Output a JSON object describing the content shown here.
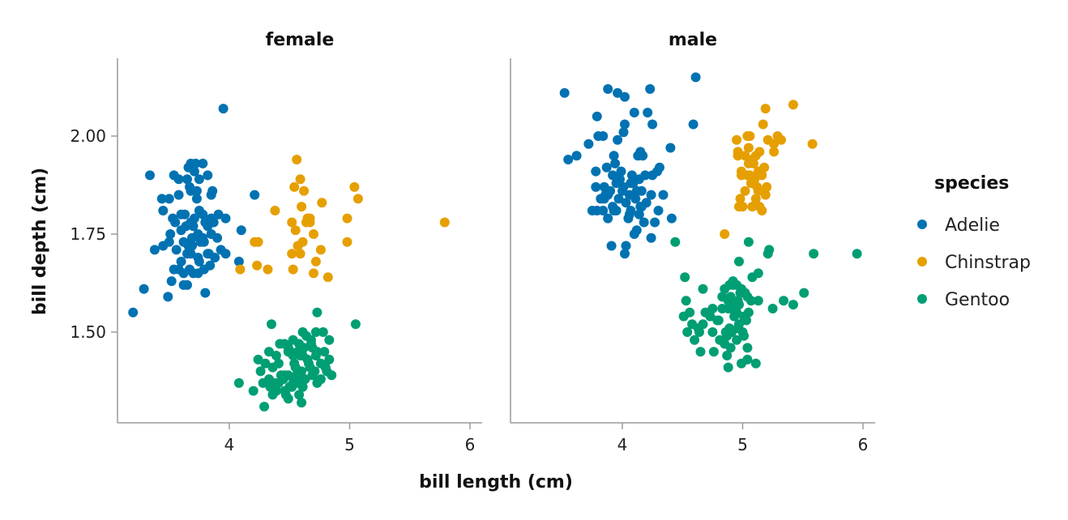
{
  "chart_data": {
    "type": "scatter",
    "xlabel": "bill length (cm)",
    "ylabel": "bill depth (cm)",
    "xlim": [
      3.1,
      6.1
    ],
    "ylim": [
      1.28,
      2.2
    ],
    "x_ticks": [
      4,
      5,
      6
    ],
    "y_ticks": [
      1.5,
      1.75,
      2.0
    ],
    "x_tick_labels": [
      "4",
      "5",
      "6"
    ],
    "y_tick_labels": [
      "1.50",
      "1.75",
      "2.00"
    ],
    "grid": false,
    "legend": {
      "title": "species",
      "placement": "right",
      "entries": [
        "Adelie",
        "Chinstrap",
        "Gentoo"
      ]
    },
    "colors": {
      "Adelie": "#0072b2",
      "Chinstrap": "#e69f00",
      "Gentoo": "#009e73"
    },
    "facets": [
      {
        "title": "female",
        "series": [
          {
            "name": "Adelie",
            "x": [
              3.95,
              3.72,
              3.78,
              3.68,
              3.66,
              3.71,
              3.58,
              3.65,
              3.75,
              3.54,
              3.82,
              3.67,
              3.68,
              3.73,
              3.58,
              3.5,
              3.73,
              3.86,
              3.85,
              3.45,
              3.75,
              3.6,
              3.63,
              3.78,
              3.85,
              3.71,
              3.53,
              3.55,
              3.68,
              3.8,
              3.64,
              3.7,
              3.82,
              3.87,
              3.6,
              3.74,
              3.85,
              3.91,
              3.51,
              3.69,
              3.62,
              3.78,
              3.79,
              3.5,
              3.69,
              3.97,
              3.66,
              3.76,
              3.9,
              3.45,
              3.56,
              3.65,
              3.93,
              3.83,
              3.38,
              3.68,
              3.82,
              3.74,
              3.88,
              3.97,
              3.6,
              3.75,
              3.54,
              3.67,
              3.84,
              3.58,
              3.74,
              4.08,
              3.79,
              3.7,
              3.62,
              3.52,
              3.65,
              3.8,
              3.29,
              3.49,
              3.62,
              3.2,
              4.21,
              4.1,
              3.34,
              3.44
            ],
            "y": [
              2.07,
              1.93,
              1.93,
              1.93,
              1.92,
              1.91,
              1.89,
              1.89,
              1.89,
              1.9,
              1.9,
              1.87,
              1.86,
              1.86,
              1.85,
              1.84,
              1.84,
              1.86,
              1.85,
              1.81,
              1.81,
              1.8,
              1.8,
              1.8,
              1.79,
              1.79,
              1.79,
              1.78,
              1.78,
              1.78,
              1.77,
              1.77,
              1.77,
              1.78,
              1.76,
              1.75,
              1.75,
              1.8,
              1.75,
              1.74,
              1.73,
              1.74,
              1.73,
              1.73,
              1.72,
              1.79,
              1.72,
              1.73,
              1.74,
              1.72,
              1.71,
              1.7,
              1.71,
              1.7,
              1.71,
              1.7,
              1.7,
              1.69,
              1.69,
              1.7,
              1.68,
              1.68,
              1.66,
              1.66,
              1.67,
              1.66,
              1.65,
              1.68,
              1.66,
              1.65,
              1.65,
              1.63,
              1.62,
              1.6,
              1.61,
              1.59,
              1.62,
              1.55,
              1.85,
              1.76,
              1.9,
              1.84
            ]
          },
          {
            "name": "Chinstrap",
            "x": [
              4.56,
              4.59,
              5.04,
              4.54,
              4.62,
              5.07,
              4.77,
              4.38,
              4.6,
              4.67,
              4.67,
              4.52,
              4.64,
              4.65,
              4.55,
              5.79,
              4.7,
              4.98,
              4.61,
              4.57,
              4.24,
              4.98,
              4.59,
              4.21,
              4.57,
              4.52,
              4.76,
              4.72,
              4.09,
              4.23,
              4.32,
              4.53,
              4.7,
              4.82
            ],
            "y": [
              1.94,
              1.89,
              1.87,
              1.87,
              1.86,
              1.84,
              1.83,
              1.81,
              1.82,
              1.79,
              1.78,
              1.78,
              1.78,
              1.79,
              1.76,
              1.78,
              1.75,
              1.79,
              1.73,
              1.72,
              1.73,
              1.73,
              1.7,
              1.73,
              1.72,
              1.7,
              1.71,
              1.68,
              1.66,
              1.67,
              1.66,
              1.66,
              1.65,
              1.64
            ]
          },
          {
            "name": "Gentoo",
            "x": [
              4.73,
              4.35,
              4.61,
              5.05,
              4.64,
              4.72,
              4.78,
              4.53,
              4.68,
              4.58,
              4.46,
              4.83,
              4.69,
              4.49,
              4.62,
              4.68,
              4.51,
              4.57,
              4.49,
              4.53,
              4.59,
              4.61,
              4.65,
              4.72,
              4.73,
              4.33,
              4.39,
              4.24,
              4.3,
              4.41,
              4.76,
              4.8,
              4.66,
              4.36,
              4.55,
              4.71,
              4.6,
              4.26,
              4.49,
              4.56,
              4.43,
              4.33,
              4.45,
              4.63,
              4.28,
              4.38,
              4.85,
              4.81,
              4.57,
              4.34,
              4.5,
              4.61,
              4.73,
              4.39,
              4.46,
              4.47,
              4.58,
              4.76,
              4.69,
              4.52,
              4.83,
              4.79,
              4.54,
              4.67,
              4.41,
              4.55,
              4.08,
              4.2,
              4.36,
              4.49,
              4.29,
              4.6,
              4.53,
              4.46,
              4.42
            ],
            "y": [
              1.55,
              1.52,
              1.5,
              1.52,
              1.49,
              1.5,
              1.5,
              1.48,
              1.48,
              1.47,
              1.47,
              1.48,
              1.46,
              1.46,
              1.46,
              1.47,
              1.45,
              1.45,
              1.45,
              1.44,
              1.44,
              1.44,
              1.43,
              1.44,
              1.45,
              1.45,
              1.44,
              1.43,
              1.42,
              1.42,
              1.42,
              1.41,
              1.42,
              1.41,
              1.41,
              1.4,
              1.4,
              1.4,
              1.39,
              1.39,
              1.39,
              1.38,
              1.38,
              1.38,
              1.37,
              1.37,
              1.39,
              1.4,
              1.37,
              1.36,
              1.36,
              1.36,
              1.37,
              1.35,
              1.35,
              1.34,
              1.34,
              1.38,
              1.39,
              1.36,
              1.43,
              1.45,
              1.42,
              1.41,
              1.37,
              1.38,
              1.37,
              1.35,
              1.34,
              1.33,
              1.31,
              1.32,
              1.37,
              1.39,
              1.47
            ]
          }
        ]
      },
      {
        "title": "male",
        "series": [
          {
            "name": "Adelie",
            "x": [
              4.61,
              3.88,
              3.96,
              4.23,
              3.52,
              4.59,
              4.02,
              4.21,
              4.1,
              3.79,
              4.02,
              4.01,
              4.25,
              3.8,
              3.84,
              3.96,
              4.4,
              3.72,
              3.93,
              4.13,
              4.15,
              4.17,
              3.62,
              3.55,
              3.94,
              3.87,
              3.78,
              4.19,
              4.25,
              3.92,
              3.99,
              4.31,
              4.08,
              4.14,
              3.98,
              4.07,
              3.85,
              4.01,
              4.09,
              4.29,
              3.9,
              3.78,
              3.95,
              4.16,
              4.12,
              4.24,
              4.06,
              3.88,
              4.11,
              3.82,
              3.97,
              4.03,
              4.2,
              4.34,
              4.16,
              3.92,
              4.07,
              4.3,
              3.95,
              3.84,
              3.75,
              3.88,
              4.14,
              4.27,
              4.41,
              4.06,
              4.18,
              4.1,
              4.03,
              3.91,
              3.79,
              3.85,
              3.93,
              4.05,
              3.86,
              4.0,
              4.15,
              4.02,
              4.24,
              4.12
            ],
            "y": [
              2.15,
              2.12,
              2.11,
              2.12,
              2.11,
              2.03,
              2.1,
              2.06,
              2.06,
              2.05,
              2.03,
              2.01,
              2.03,
              2.0,
              2.0,
              1.99,
              1.97,
              1.98,
              1.95,
              1.95,
              1.96,
              1.95,
              1.95,
              1.94,
              1.93,
              1.92,
              1.91,
              1.9,
              1.9,
              1.9,
              1.91,
              1.92,
              1.9,
              1.89,
              1.89,
              1.88,
              1.87,
              1.87,
              1.88,
              1.91,
              1.86,
              1.87,
              1.88,
              1.86,
              1.86,
              1.85,
              1.85,
              1.85,
              1.84,
              1.84,
              1.84,
              1.83,
              1.83,
              1.85,
              1.82,
              1.82,
              1.81,
              1.81,
              1.81,
              1.81,
              1.81,
              1.79,
              1.8,
              1.78,
              1.79,
              1.8,
              1.78,
              1.75,
              1.72,
              1.72,
              1.81,
              1.84,
              1.81,
              1.79,
              1.85,
              1.86,
              1.82,
              1.7,
              1.74,
              1.76
            ],
            "_": null
          },
          {
            "name": "Chinstrap",
            "x": [
              5.42,
              5.19,
              5.17,
              5.06,
              5.21,
              5.04,
              5.29,
              5.26,
              5.32,
              4.95,
              5.05,
              5.14,
              5.58,
              5.26,
              4.96,
              5.11,
              5.02,
              5.08,
              5.09,
              5.13,
              5.18,
              4.96,
              4.99,
              5.04,
              5.06,
              5.16,
              5.1,
              5.08,
              5.07,
              5.02,
              5.13,
              5.2,
              4.98,
              5.11,
              5.0,
              5.14,
              5.08,
              4.97,
              5.16,
              4.99,
              4.85,
              5.12,
              5.19,
              5.09,
              5.05
            ],
            "y": [
              2.08,
              2.07,
              2.03,
              2.0,
              1.99,
              2.0,
              2.0,
              1.98,
              1.99,
              1.99,
              1.97,
              1.96,
              1.98,
              1.96,
              1.96,
              1.95,
              1.95,
              1.94,
              1.93,
              1.91,
              1.92,
              1.95,
              1.91,
              1.9,
              1.9,
              1.9,
              1.89,
              1.88,
              1.88,
              1.86,
              1.86,
              1.87,
              1.84,
              1.84,
              1.82,
              1.82,
              1.82,
              1.82,
              1.81,
              1.9,
              1.75,
              1.87,
              1.85,
              1.88,
              1.93
            ],
            "_": null
          },
          {
            "name": "Gentoo",
            "x": [
              4.44,
              5.05,
              5.22,
              5.59,
              5.95,
              5.21,
              4.97,
              4.52,
              5.13,
              5.08,
              4.92,
              4.67,
              4.95,
              4.89,
              4.85,
              4.99,
              4.92,
              5.02,
              4.98,
              4.53,
              5.04,
              4.83,
              4.9,
              5.51,
              4.88,
              5.07,
              4.97,
              5.13,
              4.83,
              4.75,
              5.34,
              5.42,
              4.92,
              5.25,
              4.95,
              4.51,
              4.69,
              4.56,
              4.88,
              5.01,
              4.79,
              4.73,
              4.93,
              5.03,
              4.67,
              4.97,
              4.58,
              4.96,
              4.89,
              4.63,
              4.86,
              5.0,
              4.91,
              4.64,
              4.75,
              4.87,
              4.54,
              4.81,
              5.01,
              4.95,
              4.6,
              4.85,
              5.04,
              4.9,
              4.76,
              5.04,
              4.87,
              4.65,
              4.99,
              5.11,
              5.05,
              4.91,
              4.96,
              4.8,
              4.88
            ],
            "y": [
              1.73,
              1.73,
              1.71,
              1.7,
              1.7,
              1.7,
              1.68,
              1.64,
              1.65,
              1.64,
              1.63,
              1.61,
              1.62,
              1.62,
              1.61,
              1.61,
              1.62,
              1.6,
              1.6,
              1.58,
              1.59,
              1.59,
              1.59,
              1.6,
              1.58,
              1.58,
              1.57,
              1.58,
              1.56,
              1.56,
              1.58,
              1.57,
              1.57,
              1.56,
              1.55,
              1.54,
              1.55,
              1.55,
              1.56,
              1.54,
              1.53,
              1.54,
              1.54,
              1.53,
              1.52,
              1.52,
              1.52,
              1.51,
              1.51,
              1.51,
              1.5,
              1.5,
              1.5,
              1.5,
              1.5,
              1.49,
              1.5,
              1.48,
              1.49,
              1.48,
              1.48,
              1.47,
              1.46,
              1.46,
              1.45,
              1.43,
              1.44,
              1.45,
              1.42,
              1.42,
              1.55,
              1.56,
              1.58,
              1.53,
              1.41
            ],
            "_": null
          }
        ]
      }
    ]
  }
}
